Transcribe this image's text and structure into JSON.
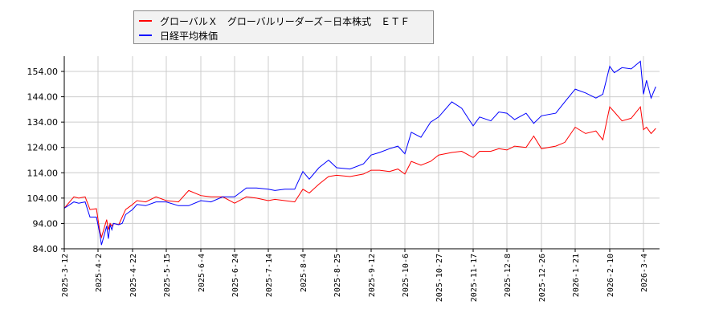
{
  "chart_data": {
    "type": "line",
    "title": "",
    "xlabel": "",
    "ylabel": "",
    "ylim": [
      84,
      160
    ],
    "yticks": [
      "84.00",
      "94.00",
      "104.00",
      "114.00",
      "124.00",
      "134.00",
      "144.00",
      "154.00"
    ],
    "xticks": [
      "2025-3-12",
      "2025-4-2",
      "2025-4-22",
      "2025-5-15",
      "2025-6-4",
      "2025-6-24",
      "2025-7-14",
      "2025-8-4",
      "2025-8-25",
      "2025-9-12",
      "2025-10-6",
      "2025-10-27",
      "2025-11-17",
      "2025-12-8",
      "2025-12-26",
      "2026-1-21",
      "2026-2-10",
      "2026-3-4"
    ],
    "grid": true,
    "legend_position": "top-left-outside",
    "series": [
      {
        "name": "グローバルＸ　グローバルリーダーズ－日本株式　ＥＴＦ",
        "color": "#ff0000",
        "x": [
          "2025-3-12",
          "2025-3-18",
          "2025-3-21",
          "2025-3-25",
          "2025-3-28",
          "2025-4-1",
          "2025-4-3",
          "2025-4-4",
          "2025-4-7",
          "2025-4-8",
          "2025-4-9",
          "2025-4-10",
          "2025-4-11",
          "2025-4-14",
          "2025-4-16",
          "2025-4-18",
          "2025-4-22",
          "2025-4-25",
          "2025-5-1",
          "2025-5-8",
          "2025-5-15",
          "2025-5-22",
          "2025-5-28",
          "2025-6-4",
          "2025-6-10",
          "2025-6-17",
          "2025-6-24",
          "2025-7-1",
          "2025-7-7",
          "2025-7-14",
          "2025-7-18",
          "2025-7-24",
          "2025-7-30",
          "2025-8-4",
          "2025-8-8",
          "2025-8-14",
          "2025-8-20",
          "2025-8-25",
          "2025-9-1",
          "2025-9-8",
          "2025-9-12",
          "2025-9-18",
          "2025-9-25",
          "2025-10-1",
          "2025-10-6",
          "2025-10-10",
          "2025-10-16",
          "2025-10-22",
          "2025-10-27",
          "2025-11-4",
          "2025-11-10",
          "2025-11-17",
          "2025-11-21",
          "2025-11-28",
          "2025-12-3",
          "2025-12-8",
          "2025-12-12",
          "2025-12-18",
          "2025-12-22",
          "2025-12-26",
          "2026-1-6",
          "2026-1-13",
          "2026-1-21",
          "2026-1-27",
          "2026-2-2",
          "2026-2-6",
          "2026-2-10",
          "2026-2-13",
          "2026-2-18",
          "2026-2-24",
          "2026-3-2",
          "2026-3-4",
          "2026-3-6",
          "2026-3-9",
          "2026-3-12"
        ],
        "values": [
          100.0,
          104.5,
          104.0,
          104.5,
          99.5,
          99.8,
          91.0,
          88.5,
          95.5,
          91.5,
          94.0,
          93.0,
          94.0,
          93.5,
          96.5,
          99.5,
          101.5,
          103.0,
          102.5,
          104.5,
          103.0,
          102.5,
          107.0,
          105.0,
          104.5,
          104.5,
          102.0,
          104.5,
          104.0,
          103.0,
          103.5,
          103.0,
          102.5,
          107.5,
          106.0,
          109.5,
          112.5,
          113.0,
          112.5,
          113.5,
          115.0,
          115.0,
          114.5,
          115.5,
          113.5,
          118.5,
          117.0,
          118.5,
          121.0,
          122.0,
          122.5,
          120.0,
          122.5,
          122.5,
          123.5,
          123.0,
          124.5,
          124.0,
          128.5,
          123.5,
          124.5,
          126.0,
          132.0,
          129.5,
          130.5,
          127.0,
          140.0,
          138.0,
          134.5,
          135.5,
          140.0,
          131.0,
          132.0,
          129.5,
          131.5
        ]
      },
      {
        "name": "日経平均株価",
        "color": "#0000ff",
        "x": [
          "2025-3-12",
          "2025-3-18",
          "2025-3-21",
          "2025-3-25",
          "2025-3-28",
          "2025-4-1",
          "2025-4-3",
          "2025-4-4",
          "2025-4-7",
          "2025-4-8",
          "2025-4-9",
          "2025-4-10",
          "2025-4-11",
          "2025-4-14",
          "2025-4-16",
          "2025-4-18",
          "2025-4-22",
          "2025-4-25",
          "2025-5-1",
          "2025-5-8",
          "2025-5-15",
          "2025-5-22",
          "2025-5-28",
          "2025-6-4",
          "2025-6-10",
          "2025-6-17",
          "2025-6-24",
          "2025-7-1",
          "2025-7-7",
          "2025-7-14",
          "2025-7-18",
          "2025-7-24",
          "2025-7-30",
          "2025-8-4",
          "2025-8-8",
          "2025-8-14",
          "2025-8-20",
          "2025-8-25",
          "2025-9-1",
          "2025-9-8",
          "2025-9-12",
          "2025-9-18",
          "2025-9-25",
          "2025-10-1",
          "2025-10-6",
          "2025-10-10",
          "2025-10-16",
          "2025-10-22",
          "2025-10-27",
          "2025-11-4",
          "2025-11-10",
          "2025-11-17",
          "2025-11-21",
          "2025-11-28",
          "2025-12-3",
          "2025-12-8",
          "2025-12-12",
          "2025-12-18",
          "2025-12-22",
          "2025-12-26",
          "2026-1-6",
          "2026-1-13",
          "2026-1-21",
          "2026-1-27",
          "2026-2-2",
          "2026-2-6",
          "2026-2-10",
          "2026-2-13",
          "2026-2-18",
          "2026-2-24",
          "2026-3-2",
          "2026-3-4",
          "2026-3-6",
          "2026-3-9",
          "2026-3-12"
        ],
        "values": [
          100.0,
          102.5,
          102.0,
          102.5,
          96.5,
          96.5,
          90.0,
          85.5,
          93.0,
          88.0,
          93.5,
          91.5,
          94.0,
          93.5,
          94.0,
          97.5,
          99.5,
          101.5,
          101.0,
          102.5,
          102.5,
          101.0,
          101.0,
          103.0,
          102.5,
          104.5,
          104.5,
          108.0,
          108.0,
          107.5,
          107.0,
          107.5,
          107.5,
          114.5,
          111.5,
          116.0,
          119.0,
          116.0,
          115.5,
          117.5,
          121.0,
          122.0,
          123.5,
          124.5,
          121.5,
          130.0,
          128.0,
          134.0,
          136.0,
          142.0,
          139.5,
          132.5,
          136.0,
          134.5,
          138.0,
          137.5,
          135.0,
          137.5,
          133.5,
          136.5,
          137.5,
          142.0,
          147.0,
          145.5,
          143.5,
          145.0,
          156.0,
          153.5,
          155.5,
          155.0,
          158.0,
          145.0,
          150.5,
          143.5,
          148.0
        ]
      }
    ]
  },
  "legend": {
    "items": [
      {
        "label": "グローバルＸ　グローバルリーダーズ－日本株式　ＥＴＦ",
        "color": "#ff0000"
      },
      {
        "label": "日経平均株価",
        "color": "#0000ff"
      }
    ]
  }
}
